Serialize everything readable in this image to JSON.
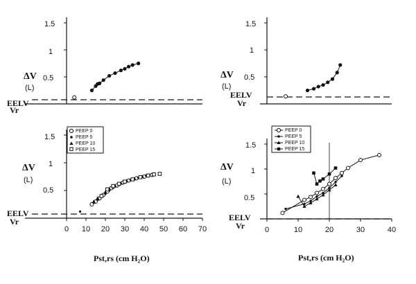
{
  "chart_data": [
    {
      "type": "scatter",
      "panel": "top-left",
      "ylabel": "ΔV",
      "yunit": "(L)",
      "baseline_labels": [
        "EELV",
        "Vr"
      ],
      "y_ticks": [
        "1.5",
        "1",
        "0.5"
      ],
      "ylim": [
        0,
        1.5
      ],
      "xlim": [
        0,
        70
      ],
      "eelv_level": 0.12,
      "series": [
        {
          "marker": "filled-circle",
          "line": true,
          "x": [
            13,
            15,
            16,
            17,
            19,
            22,
            25,
            28,
            30,
            32,
            34,
            37
          ],
          "y": [
            0.25,
            0.33,
            0.37,
            0.38,
            0.44,
            0.52,
            0.57,
            0.62,
            0.65,
            0.69,
            0.72,
            0.75
          ]
        },
        {
          "marker": "open-circle",
          "line": false,
          "x": [
            4
          ],
          "y": [
            0.12
          ]
        }
      ]
    },
    {
      "type": "scatter",
      "panel": "top-right",
      "ylabel": "ΔV",
      "yunit": "(L)",
      "baseline_labels": [
        "EELV",
        "Vr"
      ],
      "y_ticks": [
        "1.5",
        "1",
        "0.5"
      ],
      "ylim": [
        0,
        1.5
      ],
      "xlim": [
        0,
        40
      ],
      "eelv_level": 0.12,
      "series": [
        {
          "marker": "filled-circle",
          "line": true,
          "x": [
            13,
            15,
            16.5,
            18,
            19.5,
            21,
            22.5,
            23.5
          ],
          "y": [
            0.25,
            0.28,
            0.32,
            0.35,
            0.4,
            0.46,
            0.58,
            0.72
          ]
        },
        {
          "marker": "open-circle",
          "line": false,
          "x": [
            6
          ],
          "y": [
            0.14
          ]
        }
      ]
    },
    {
      "type": "scatter",
      "panel": "bottom-left",
      "ylabel": "ΔV",
      "yunit": "(L)",
      "baseline_labels": [
        "EELV",
        "Vr"
      ],
      "xlabel": "Pst,rs  (cm H₂O)",
      "y_ticks": [
        "1.5",
        "1",
        "0.5"
      ],
      "x_ticks": [
        "0",
        "10",
        "20",
        "30",
        "40",
        "50",
        "60",
        "70"
      ],
      "ylim": [
        0,
        1.5
      ],
      "xlim": [
        0,
        70
      ],
      "eelv_level": 0.12,
      "legend": [
        "PEEP 0",
        "PEEP 5",
        "PEEP 10",
        "PEEP 15"
      ],
      "series": [
        {
          "name": "PEEP 0",
          "marker": "open-circle",
          "line": true,
          "x": [
            13,
            15,
            17,
            19,
            21,
            23,
            26,
            29,
            32,
            36,
            40,
            44
          ],
          "y": [
            0.25,
            0.3,
            0.36,
            0.42,
            0.48,
            0.54,
            0.59,
            0.64,
            0.68,
            0.72,
            0.75,
            0.78
          ]
        },
        {
          "name": "PEEP 5",
          "marker": "dot",
          "line": false,
          "x": [
            7,
            14,
            16,
            18,
            20,
            22,
            24,
            27,
            30,
            33,
            37,
            41
          ],
          "y": [
            0.12,
            0.28,
            0.33,
            0.39,
            0.44,
            0.5,
            0.55,
            0.6,
            0.65,
            0.69,
            0.73,
            0.77
          ]
        },
        {
          "name": "PEEP 10",
          "marker": "filled-triangle",
          "line": false,
          "x": [
            14,
            16,
            18,
            20,
            22,
            25,
            28,
            31,
            35,
            39
          ],
          "y": [
            0.3,
            0.36,
            0.41,
            0.47,
            0.53,
            0.58,
            0.63,
            0.67,
            0.71,
            0.75
          ]
        },
        {
          "name": "PEEP 15",
          "marker": "open-square",
          "line": false,
          "x": [
            18,
            21,
            24,
            27,
            30,
            34,
            38,
            42,
            45,
            48
          ],
          "y": [
            0.4,
            0.52,
            0.58,
            0.62,
            0.66,
            0.7,
            0.74,
            0.77,
            0.79,
            0.8
          ]
        }
      ]
    },
    {
      "type": "line",
      "panel": "bottom-right",
      "ylabel": "ΔV",
      "yunit": "(L)",
      "baseline_labels": [
        "EELV",
        "Vr"
      ],
      "xlabel": "Pst,rs  (cm H₂O)",
      "y_ticks": [
        "1.5",
        "1",
        "0.5"
      ],
      "x_ticks": [
        "0",
        "10",
        "20",
        "30",
        "40"
      ],
      "ylim": [
        0,
        1.5
      ],
      "xlim": [
        0,
        40
      ],
      "eelv_level": 0.12,
      "vertical_line_x": 20,
      "legend": [
        "PEEP 0",
        "PEEP 5",
        "PEEP 10",
        "PEEP 15"
      ],
      "series": [
        {
          "name": "PEEP 0",
          "marker": "open-circle",
          "line": true,
          "x": [
            5,
            12,
            14,
            16,
            18,
            20,
            22,
            24,
            26,
            30,
            36
          ],
          "y": [
            0.12,
            0.38,
            0.44,
            0.52,
            0.6,
            0.7,
            0.82,
            0.92,
            1.02,
            1.18,
            1.28
          ]
        },
        {
          "name": "PEEP 5",
          "marker": "dot",
          "line": true,
          "x": [
            6,
            12,
            14,
            16,
            18,
            20,
            22,
            24
          ],
          "y": [
            0.2,
            0.3,
            0.36,
            0.45,
            0.52,
            0.62,
            0.74,
            0.86
          ]
        },
        {
          "name": "PEEP 10",
          "marker": "filled-triangle",
          "line": true,
          "x": [
            10,
            12,
            14,
            16,
            18,
            20,
            22
          ],
          "y": [
            0.45,
            0.25,
            0.32,
            0.4,
            0.48,
            0.58,
            0.68
          ]
        },
        {
          "name": "PEEP 15",
          "marker": "filled-square",
          "line": true,
          "x": [
            15,
            16,
            17,
            18,
            20,
            22
          ],
          "y": [
            0.92,
            0.7,
            0.76,
            0.8,
            0.9,
            1.02
          ]
        }
      ]
    }
  ]
}
